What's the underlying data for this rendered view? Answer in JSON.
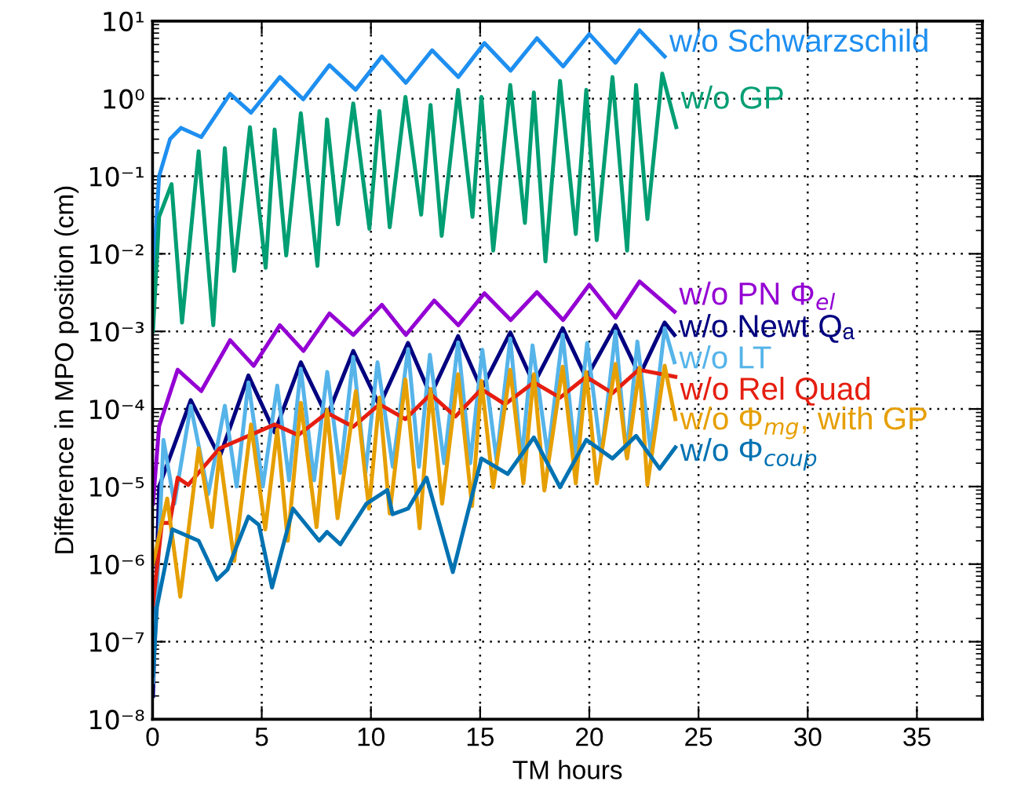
{
  "chart_data": {
    "type": "line",
    "xlabel": "TM hours",
    "ylabel": "Difference in MPO position (cm)",
    "log": "y",
    "grid": true,
    "line_style": "solid",
    "marker": "none",
    "xlim": [
      0,
      38
    ],
    "xticks": [
      0,
      5,
      10,
      15,
      20,
      25,
      30,
      35
    ],
    "ylim": [
      1e-08,
      10
    ],
    "yticks": [
      {
        "value": 1e-08,
        "label": "10⁻⁸"
      },
      {
        "value": 1e-07,
        "label": "10⁻⁷"
      },
      {
        "value": 1e-06,
        "label": "10⁻⁶"
      },
      {
        "value": 1e-05,
        "label": "10⁻⁵"
      },
      {
        "value": 0.0001,
        "label": "10⁻⁴"
      },
      {
        "value": 0.001,
        "label": "10⁻³"
      },
      {
        "value": 0.01,
        "label": "10⁻²"
      },
      {
        "value": 0.1,
        "label": "10⁻¹"
      },
      {
        "value": 1,
        "label": "10⁰"
      },
      {
        "value": 10,
        "label": "10¹"
      }
    ],
    "series": [
      {
        "name": "w/o Schwarzschild",
        "color": "#1e8ff0",
        "x": [
          0.02,
          0.3,
          0.8,
          1.3,
          2.23,
          3.55,
          4.51,
          5.83,
          6.9,
          8.1,
          9.3,
          10.5,
          11.6,
          12.8,
          14.0,
          15.2,
          16.4,
          17.6,
          18.8,
          20.0,
          21.2,
          22.3,
          23.45
        ],
        "values": [
          0.005,
          0.1,
          0.3,
          0.42,
          0.32,
          1.15,
          0.66,
          1.9,
          0.98,
          2.7,
          1.3,
          3.5,
          1.6,
          4.2,
          1.9,
          5.2,
          2.3,
          6.0,
          2.6,
          6.8,
          2.9,
          7.6,
          3.5
        ]
      },
      {
        "name": "w/o GP",
        "color": "#009e73",
        "x": [
          0.02,
          0.3,
          0.87,
          1.35,
          2.11,
          2.78,
          3.31,
          3.74,
          4.46,
          5.18,
          5.59,
          6.12,
          6.79,
          7.55,
          7.99,
          8.49,
          9.19,
          9.93,
          10.39,
          10.86,
          11.58,
          12.3,
          12.73,
          13.24,
          13.99,
          14.65,
          15.06,
          15.6,
          16.38,
          17.05,
          17.46,
          17.99,
          18.66,
          19.38,
          19.86,
          20.34,
          21.06,
          21.73,
          22.14,
          22.66,
          23.34,
          23.98
        ],
        "values": [
          0.001,
          0.03,
          0.079,
          0.0013,
          0.21,
          0.0012,
          0.23,
          0.006,
          0.43,
          0.0066,
          0.4,
          0.0095,
          0.65,
          0.007,
          0.54,
          0.024,
          0.87,
          0.021,
          0.69,
          0.022,
          1.05,
          0.032,
          0.83,
          0.017,
          1.3,
          0.03,
          1.05,
          0.011,
          1.5,
          0.025,
          1.2,
          0.008,
          1.7,
          0.018,
          1.3,
          0.015,
          1.9,
          0.011,
          1.5,
          0.028,
          2.1,
          0.43
        ]
      },
      {
        "name": "w/o PN Φ$_{el}$",
        "color": "#9400d3",
        "x": [
          0.02,
          0.3,
          1.15,
          2.23,
          3.55,
          4.63,
          5.83,
          6.91,
          8.1,
          9.19,
          10.5,
          11.6,
          12.9,
          14.0,
          15.2,
          16.4,
          17.6,
          18.8,
          20.0,
          21.2,
          22.3,
          23.9
        ],
        "values": [
          6e-06,
          6e-05,
          0.00032,
          0.00017,
          0.00077,
          0.00036,
          0.0012,
          0.00056,
          0.0017,
          0.0009,
          0.0022,
          0.0009,
          0.0025,
          0.0012,
          0.0031,
          0.0014,
          0.0032,
          0.0014,
          0.004,
          0.0015,
          0.0044,
          0.0018
        ]
      },
      {
        "name": "w/o Newt Qₐ",
        "color": "#000080",
        "x": [
          0.02,
          0.3,
          1.75,
          3.07,
          4.39,
          5.59,
          6.79,
          7.99,
          9.19,
          10.39,
          11.7,
          12.73,
          13.99,
          15.06,
          16.38,
          17.46,
          18.78,
          19.86,
          21.2,
          22.3,
          23.45,
          23.9
        ],
        "values": [
          2e-08,
          1e-05,
          0.00013,
          2.4e-05,
          0.00027,
          5e-05,
          0.0004,
          8e-05,
          0.00056,
          0.00011,
          0.00071,
          0.00015,
          0.00087,
          0.00018,
          0.00097,
          0.00021,
          0.0011,
          0.00025,
          0.0012,
          0.00027,
          0.0013,
          0.0009
        ]
      },
      {
        "name": "w/o LT",
        "color": "#56b4e9",
        "x": [
          0.02,
          0.5,
          1.0,
          1.75,
          2.55,
          3.31,
          3.85,
          4.39,
          5.05,
          5.71,
          6.25,
          6.79,
          7.4,
          8.0,
          8.6,
          9.19,
          9.75,
          10.3,
          11.0,
          11.7,
          12.2,
          12.7,
          13.35,
          13.99,
          14.55,
          15.1,
          15.75,
          16.38,
          16.9,
          17.4,
          18.1,
          18.78,
          19.35,
          19.9,
          20.55,
          21.2,
          21.7,
          22.2,
          22.8,
          23.45,
          23.9
        ],
        "values": [
          3e-08,
          4e-05,
          6e-06,
          0.00011,
          8e-06,
          0.00011,
          1e-05,
          0.00022,
          1e-05,
          0.0002,
          1.2e-05,
          0.00033,
          1.2e-05,
          0.0003,
          1.5e-05,
          0.00047,
          1.5e-05,
          0.0004,
          1.8e-05,
          0.00059,
          1.8e-05,
          0.0005,
          2e-05,
          0.00072,
          2e-05,
          0.00058,
          2.2e-05,
          0.00081,
          2.2e-05,
          0.00066,
          2.5e-05,
          0.00091,
          2.5e-05,
          0.00071,
          2.5e-05,
          0.001,
          2.5e-05,
          0.00074,
          3e-05,
          0.0011,
          0.0004
        ]
      },
      {
        "name": "w/o Rel Quad",
        "color": "#e51e10",
        "x": [
          0.02,
          0.43,
          0.79,
          1.15,
          1.63,
          3.07,
          5.59,
          6.67,
          7.99,
          9.19,
          10.39,
          11.58,
          12.73,
          13.87,
          15.06,
          16.14,
          17.46,
          18.66,
          19.86,
          21.06,
          22.26,
          23.94
        ],
        "values": [
          3e-07,
          3.4e-06,
          3.4e-06,
          1.3e-05,
          1.05e-05,
          3.1e-05,
          6.3e-05,
          4.6e-05,
          8.9e-05,
          5.9e-05,
          0.000115,
          7.4e-05,
          0.000155,
          8e-05,
          0.00018,
          0.000115,
          0.00022,
          0.00014,
          0.00026,
          0.00016,
          0.00032,
          0.00026
        ]
      },
      {
        "name": "w/o Φ$_{mg}$, with GP",
        "color": "#e69f00",
        "x": [
          0.02,
          0.67,
          1.27,
          2.11,
          2.71,
          3.07,
          3.74,
          4.51,
          5.16,
          5.71,
          6.19,
          6.79,
          7.51,
          7.99,
          8.47,
          9.31,
          9.91,
          10.39,
          10.86,
          11.58,
          12.23,
          12.73,
          13.26,
          13.99,
          14.63,
          15.06,
          15.6,
          16.38,
          16.98,
          17.46,
          17.94,
          18.78,
          19.38,
          19.86,
          20.34,
          21.2,
          21.73,
          22.3,
          22.66,
          23.45,
          23.94
        ],
        "values": [
          1e-06,
          7e-06,
          3.8e-07,
          3.1e-05,
          3e-06,
          2.7e-05,
          1.1e-06,
          6.3e-05,
          2.8e-06,
          5.4e-05,
          2e-06,
          0.00012,
          3e-06,
          9.8e-05,
          3.9e-06,
          0.00017,
          5.2e-06,
          0.00014,
          4.5e-06,
          0.00024,
          2.9e-06,
          0.00018,
          6e-06,
          0.00028,
          5.6e-06,
          0.00023,
          9.8e-06,
          0.00032,
          1.1e-05,
          0.00028,
          8.9e-06,
          0.00035,
          1.1e-05,
          0.0003,
          1.1e-05,
          0.00038,
          2.3e-05,
          0.00034,
          1.05e-05,
          0.00036,
          7.4e-05
        ]
      },
      {
        "name": "w/o Φ$_{coup}$",
        "color": "#0072b2",
        "x": [
          0.02,
          0.2,
          0.91,
          2.11,
          2.95,
          3.43,
          4.39,
          4.87,
          5.47,
          6.43,
          7.63,
          7.99,
          8.6,
          9.79,
          10.75,
          10.99,
          11.7,
          12.55,
          13.75,
          15.06,
          16.26,
          17.46,
          18.66,
          19.86,
          21.06,
          22.14,
          23.22,
          23.94
        ],
        "values": [
          3.7e-08,
          2.8e-07,
          2.8e-06,
          2e-06,
          6.3e-07,
          8.5e-07,
          4.1e-06,
          3.2e-06,
          5e-07,
          5.2e-06,
          2e-06,
          2.6e-06,
          1.8e-06,
          6e-06,
          9e-06,
          4.4e-06,
          5.2e-06,
          1.3e-05,
          7.9e-07,
          2.3e-05,
          1.45e-05,
          4.3e-05,
          9.8e-06,
          4e-05,
          2.3e-05,
          4.5e-05,
          1.7e-05,
          3.2e-05
        ]
      }
    ]
  }
}
